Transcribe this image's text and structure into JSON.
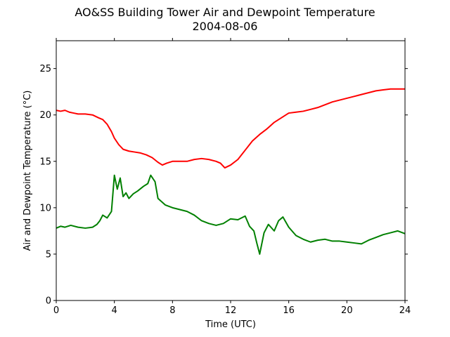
{
  "chart_data": {
    "type": "line",
    "title": "AO&SS Building Tower Air and Dewpoint Temperature",
    "subtitle": "2004-08-06",
    "xlabel": "Time (UTC)",
    "ylabel": "Air and Dewpoint Temperature (°C)",
    "xlim": [
      0,
      24
    ],
    "ylim": [
      0,
      28
    ],
    "xticks": [
      0,
      4,
      8,
      12,
      16,
      20,
      24
    ],
    "yticks": [
      0,
      5,
      10,
      15,
      20,
      25
    ],
    "xtick_labels": [
      "0",
      "4",
      "8",
      "12",
      "16",
      "20",
      "24"
    ],
    "ytick_labels": [
      "0",
      "5",
      "10",
      "15",
      "20",
      "25"
    ],
    "grid": false,
    "legend": "none",
    "series": [
      {
        "color": "#ff0000",
        "x": [
          0,
          0.3,
          0.6,
          0.9,
          1.2,
          1.5,
          2.0,
          2.5,
          2.9,
          3.2,
          3.5,
          3.8,
          4.0,
          4.3,
          4.6,
          5.0,
          5.4,
          5.8,
          6.2,
          6.6,
          7.0,
          7.3,
          7.6,
          8.0,
          8.5,
          9.0,
          9.5,
          10.0,
          10.5,
          11.0,
          11.3,
          11.6,
          12.0,
          12.5,
          13.0,
          13.5,
          14.0,
          14.5,
          15.0,
          15.5,
          16.0,
          16.5,
          17.0,
          17.5,
          18.0,
          18.5,
          19.0,
          19.5,
          20.0,
          20.5,
          21.0,
          21.5,
          22.0,
          22.5,
          23.0,
          23.5,
          24.0
        ],
        "y": [
          20.5,
          20.4,
          20.5,
          20.3,
          20.2,
          20.1,
          20.1,
          20.0,
          19.7,
          19.5,
          19.0,
          18.2,
          17.5,
          16.8,
          16.3,
          16.1,
          16.0,
          15.9,
          15.7,
          15.4,
          14.9,
          14.6,
          14.8,
          15.0,
          15.0,
          15.0,
          15.2,
          15.3,
          15.2,
          15.0,
          14.8,
          14.3,
          14.6,
          15.2,
          16.2,
          17.2,
          17.9,
          18.5,
          19.2,
          19.7,
          20.2,
          20.3,
          20.4,
          20.6,
          20.8,
          21.1,
          21.4,
          21.6,
          21.8,
          22.0,
          22.2,
          22.4,
          22.6,
          22.7,
          22.8,
          22.8,
          22.8
        ]
      },
      {
        "color": "#008000",
        "x": [
          0,
          0.3,
          0.6,
          1.0,
          1.5,
          2.0,
          2.5,
          2.8,
          3.0,
          3.2,
          3.5,
          3.8,
          4.0,
          4.2,
          4.4,
          4.6,
          4.8,
          5.0,
          5.3,
          5.6,
          6.0,
          6.3,
          6.5,
          6.8,
          7.0,
          7.5,
          8.0,
          8.5,
          9.0,
          9.5,
          10.0,
          10.5,
          11.0,
          11.5,
          12.0,
          12.5,
          13.0,
          13.3,
          13.6,
          13.8,
          14.0,
          14.3,
          14.6,
          15.0,
          15.3,
          15.6,
          16.0,
          16.5,
          17.0,
          17.5,
          18.0,
          18.5,
          19.0,
          19.5,
          20.0,
          20.5,
          21.0,
          21.5,
          22.0,
          22.5,
          23.0,
          23.5,
          24.0
        ],
        "y": [
          7.8,
          8.0,
          7.9,
          8.1,
          7.9,
          7.8,
          7.9,
          8.2,
          8.6,
          9.2,
          8.9,
          9.6,
          13.5,
          12.0,
          13.2,
          11.2,
          11.6,
          11.0,
          11.5,
          11.8,
          12.3,
          12.6,
          13.5,
          12.8,
          11.0,
          10.3,
          10.0,
          9.8,
          9.6,
          9.2,
          8.6,
          8.3,
          8.1,
          8.3,
          8.8,
          8.7,
          9.1,
          8.0,
          7.5,
          6.2,
          5.0,
          7.3,
          8.2,
          7.5,
          8.6,
          9.0,
          7.9,
          7.0,
          6.6,
          6.3,
          6.5,
          6.6,
          6.4,
          6.4,
          6.3,
          6.2,
          6.1,
          6.5,
          6.8,
          7.1,
          7.3,
          7.5,
          7.2
        ]
      }
    ]
  }
}
